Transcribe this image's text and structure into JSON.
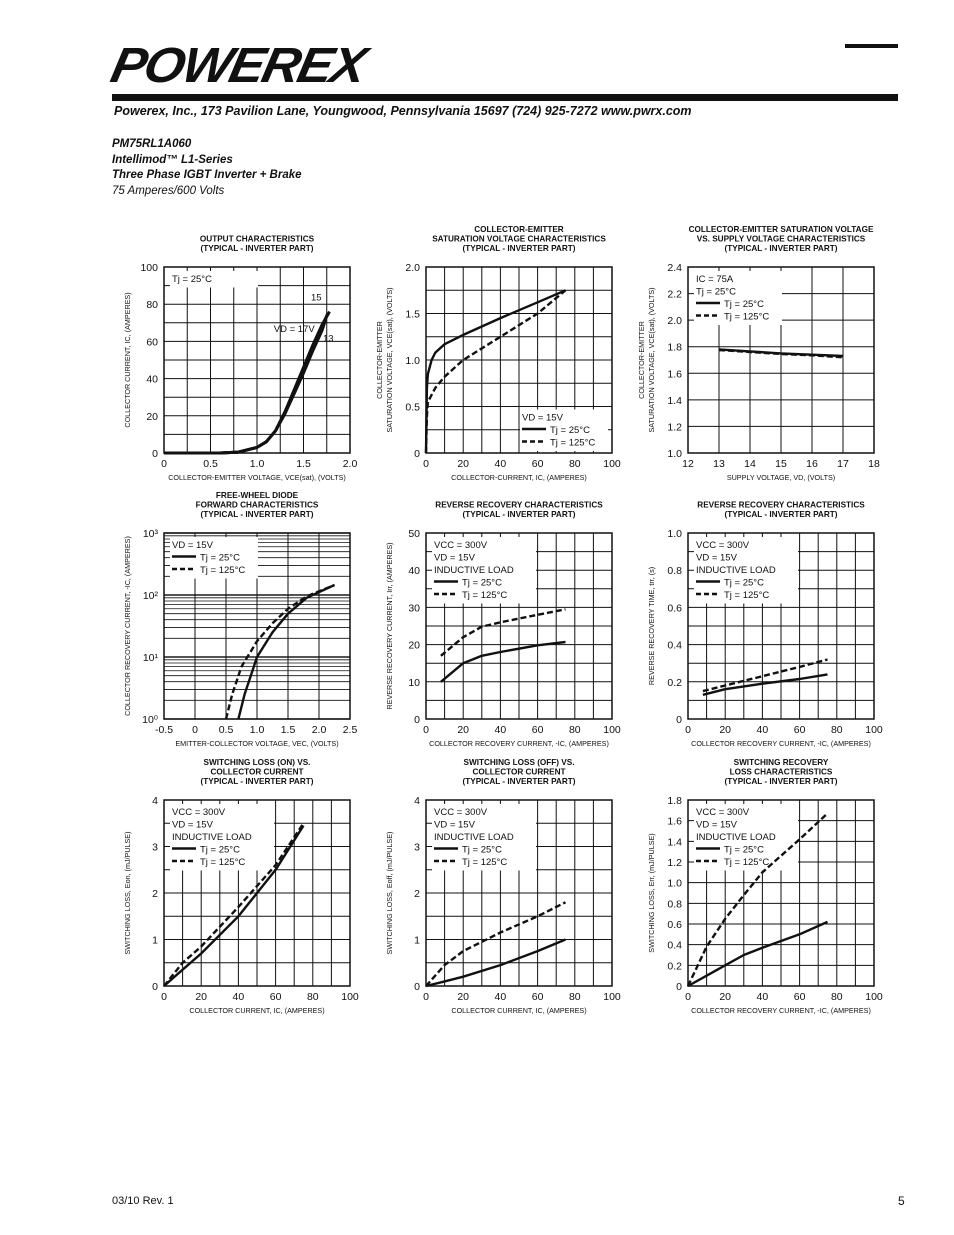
{
  "header": {
    "logo": "POWEREX",
    "address": "Powerex, Inc., 173 Pavilion Lane, Youngwood, Pennsylvania  15697   (724) 925-7272  www.pwrx.com",
    "part_number": "PM75RL1A060",
    "series": "Intellimod™ L1-Series",
    "description": "Three Phase IGBT Inverter + Brake",
    "rating": "75 Amperes/600 Volts"
  },
  "footer": {
    "revision": "03/10 Rev. 1",
    "page": "5"
  },
  "colors": {
    "ink": "#111111",
    "grid": "#111111"
  },
  "chart_data": [
    {
      "type": "line",
      "title": [
        "OUTPUT CHARACTERISTICS",
        "(TYPICAL - INVERTER PART)"
      ],
      "xlabel": "COLLECTOR-EMITTER VOLTAGE, VCE(sat), (VOLTS)",
      "ylabel": [
        "COLLECTOR CURRENT, IC, (AMPERES)"
      ],
      "xlim": [
        0,
        2.0
      ],
      "ylim": [
        0,
        100
      ],
      "xticks": [
        0,
        0.5,
        1.0,
        1.5,
        2.0
      ],
      "xtick_labels": [
        "0",
        "0.5",
        "1.0",
        "1.5",
        "2.0"
      ],
      "yticks": [
        0,
        20,
        40,
        60,
        80,
        100
      ],
      "ytick_labels": [
        "0",
        "20",
        "40",
        "60",
        "80",
        "100"
      ],
      "grid": true,
      "legend_position": "top-left",
      "legend": [
        {
          "text": "Tj = 25°C"
        }
      ],
      "annotations": [
        "15",
        "VD = 17V",
        "13"
      ],
      "series": [
        {
          "style": "solid",
          "x": [
            0,
            0.6,
            0.8,
            1.0,
            1.1,
            1.2,
            1.3,
            1.4,
            1.5,
            1.6,
            1.7,
            1.78
          ],
          "y": [
            0,
            0,
            0.5,
            3,
            6,
            12,
            22,
            34,
            46,
            58,
            69,
            76
          ]
        },
        {
          "style": "solid",
          "x": [
            0,
            0.6,
            0.8,
            1.0,
            1.1,
            1.2,
            1.3,
            1.4,
            1.5,
            1.6,
            1.7,
            1.76
          ],
          "y": [
            0,
            0,
            0.5,
            3,
            6,
            12,
            22,
            33,
            45,
            57,
            68,
            75
          ]
        },
        {
          "style": "solid",
          "x": [
            0,
            0.6,
            0.8,
            1.0,
            1.1,
            1.2,
            1.3,
            1.4,
            1.5,
            1.6,
            1.7,
            1.74
          ],
          "y": [
            0,
            0,
            0.5,
            3,
            6,
            12,
            21,
            32,
            43,
            55,
            66,
            72
          ]
        }
      ]
    },
    {
      "type": "line",
      "title": [
        "COLLECTOR-EMITTER",
        "SATURATION VOLTAGE CHARACTERISTICS",
        "(TYPICAL - INVERTER PART)"
      ],
      "xlabel": "COLLECTOR-CURRENT, IC, (AMPERES)",
      "ylabel": [
        "COLLECTOR-EMITTER",
        "SATURATION VOLTAGE, VCE(sat), (VOLTS)"
      ],
      "xlim": [
        0,
        100
      ],
      "ylim": [
        0,
        2.0
      ],
      "xticks": [
        0,
        20,
        40,
        60,
        80,
        100
      ],
      "xtick_labels": [
        "0",
        "20",
        "40",
        "60",
        "80",
        "100"
      ],
      "yticks": [
        0,
        0.5,
        1.0,
        1.5,
        2.0
      ],
      "ytick_labels": [
        "0",
        "0.5",
        "1.0",
        "1.5",
        "2.0"
      ],
      "grid": true,
      "legend_position": "bottom-right",
      "legend": [
        {
          "text": "VD = 15V"
        },
        {
          "text": "Tj = 25°C",
          "style": "solid"
        },
        {
          "text": "Tj = 125°C",
          "style": "dashed"
        }
      ],
      "series": [
        {
          "name": "Tj = 25°C",
          "style": "solid",
          "x": [
            0,
            0.5,
            1,
            3,
            5,
            10,
            20,
            40,
            60,
            75
          ],
          "y": [
            0,
            0.7,
            0.85,
            1.0,
            1.08,
            1.17,
            1.27,
            1.45,
            1.62,
            1.75
          ]
        },
        {
          "name": "Tj = 125°C",
          "style": "dashed",
          "x": [
            0,
            0.5,
            1,
            5,
            10,
            20,
            40,
            60,
            75
          ],
          "y": [
            0,
            0.4,
            0.55,
            0.7,
            0.82,
            1.0,
            1.25,
            1.5,
            1.75
          ]
        }
      ]
    },
    {
      "type": "line",
      "title": [
        "COLLECTOR-EMITTER SATURATION VOLTAGE",
        "VS. SUPPLY VOLTAGE CHARACTERISTICS",
        "(TYPICAL - INVERTER PART)"
      ],
      "xlabel": "SUPPLY VOLTAGE, VD, (VOLTS)",
      "ylabel": [
        "COLLECTOR-EMITTER",
        "SATURATION VOLTAGE, VCE(sat), (VOLTS)"
      ],
      "xlim": [
        12,
        18
      ],
      "ylim": [
        1.0,
        2.4
      ],
      "xticks": [
        12,
        13,
        14,
        15,
        16,
        17,
        18
      ],
      "xtick_labels": [
        "12",
        "13",
        "14",
        "15",
        "16",
        "17",
        "18"
      ],
      "yticks": [
        1.0,
        1.2,
        1.4,
        1.6,
        1.8,
        2.0,
        2.2,
        2.4
      ],
      "ytick_labels": [
        "1.0",
        "1.2",
        "1.4",
        "1.6",
        "1.8",
        "2.0",
        "2.2",
        "2.4"
      ],
      "grid": true,
      "legend_position": "top-left",
      "legend": [
        {
          "text": "IC = 75A"
        },
        {
          "text": "Tj = 25°C"
        },
        {
          "text": "Tj = 25°C",
          "style": "solid"
        },
        {
          "text": "Tj = 125°C",
          "style": "dashed"
        }
      ],
      "series": [
        {
          "name": "Tj = 25°C",
          "style": "solid",
          "x": [
            13,
            14,
            15,
            16,
            17
          ],
          "y": [
            1.78,
            1.765,
            1.75,
            1.74,
            1.73
          ]
        },
        {
          "name": "Tj = 125°C",
          "style": "dashed",
          "x": [
            13,
            14,
            15,
            16,
            17
          ],
          "y": [
            1.775,
            1.76,
            1.745,
            1.735,
            1.72
          ]
        }
      ]
    },
    {
      "type": "line",
      "title": [
        "FREE-WHEEL DIODE",
        "FORWARD CHARACTERISTICS",
        "(TYPICAL - INVERTER PART)"
      ],
      "xlabel": "EMITTER-COLLECTOR VOLTAGE, VEC, (VOLTS)",
      "ylabel": [
        "COLLECTOR RECOVERY CURRENT, -IC, (AMPERES)"
      ],
      "xlim": [
        -0.5,
        2.5
      ],
      "ylim": [
        1,
        1000
      ],
      "yscale": "log",
      "xticks": [
        -0.5,
        0,
        0.5,
        1.0,
        1.5,
        2.0,
        2.5
      ],
      "xtick_labels": [
        "-0.5",
        "0",
        "0.5",
        "1.0",
        "1.5",
        "2.0",
        "2.5"
      ],
      "yticks": [
        1,
        10,
        100,
        1000
      ],
      "ytick_labels": [
        "10⁰",
        "10¹",
        "10²",
        "10³"
      ],
      "grid": true,
      "legend_position": "top-left",
      "legend": [
        {
          "text": "VD = 15V"
        },
        {
          "text": "Tj = 25°C",
          "style": "solid"
        },
        {
          "text": "Tj = 125°C",
          "style": "dashed"
        }
      ],
      "series": [
        {
          "name": "Tj = 25°C",
          "style": "solid",
          "x": [
            0.7,
            0.8,
            0.9,
            1.0,
            1.25,
            1.5,
            1.8,
            2.25
          ],
          "y": [
            1,
            2.5,
            5,
            10,
            25,
            50,
            90,
            145
          ]
        },
        {
          "name": "Tj = 125°C",
          "style": "dashed",
          "x": [
            0.5,
            0.6,
            0.75,
            1.0,
            1.25,
            1.5,
            1.8,
            2.25
          ],
          "y": [
            1,
            2.5,
            7,
            18,
            35,
            60,
            95,
            145
          ]
        }
      ]
    },
    {
      "type": "line",
      "title": [
        "REVERSE RECOVERY CHARACTERISTICS",
        "(TYPICAL - INVERTER PART)"
      ],
      "xlabel": "COLLECTOR RECOVERY CURRENT, -IC, (AMPERES)",
      "ylabel": [
        "REVERSE RECOVERY CURRENT, Irr, (AMPERES)"
      ],
      "xlim": [
        0,
        100
      ],
      "ylim": [
        0,
        50
      ],
      "xticks": [
        0,
        20,
        40,
        60,
        80,
        100
      ],
      "xtick_labels": [
        "0",
        "20",
        "40",
        "60",
        "80",
        "100"
      ],
      "yticks": [
        0,
        10,
        20,
        30,
        40,
        50
      ],
      "ytick_labels": [
        "0",
        "10",
        "20",
        "30",
        "40",
        "50"
      ],
      "grid": true,
      "legend_position": "top-left",
      "legend": [
        {
          "text": "VCC = 300V"
        },
        {
          "text": "VD = 15V"
        },
        {
          "text": "INDUCTIVE LOAD"
        },
        {
          "text": "Tj = 25°C",
          "style": "solid"
        },
        {
          "text": "Tj = 125°C",
          "style": "dashed"
        }
      ],
      "series": [
        {
          "name": "Tj = 25°C",
          "style": "solid",
          "x": [
            8,
            20,
            30,
            40,
            60,
            75
          ],
          "y": [
            10,
            15,
            17,
            18,
            19.8,
            20.7
          ]
        },
        {
          "name": "Tj = 125°C",
          "style": "dashed",
          "x": [
            8,
            20,
            30,
            40,
            60,
            75
          ],
          "y": [
            17,
            22,
            24.8,
            26,
            28,
            29.5
          ]
        }
      ]
    },
    {
      "type": "line",
      "title": [
        "REVERSE RECOVERY CHARACTERISTICS",
        "(TYPICAL - INVERTER PART)"
      ],
      "xlabel": "COLLECTOR RECOVERY CURRENT, -IC, (AMPERES)",
      "ylabel": [
        "REVERSE RECOVERY TIME, trr, (s)"
      ],
      "xlim": [
        0,
        100
      ],
      "ylim": [
        0,
        1.0
      ],
      "xticks": [
        0,
        20,
        40,
        60,
        80,
        100
      ],
      "xtick_labels": [
        "0",
        "20",
        "40",
        "60",
        "80",
        "100"
      ],
      "yticks": [
        0,
        0.2,
        0.4,
        0.6,
        0.8,
        1.0
      ],
      "ytick_labels": [
        "0",
        "0.2",
        "0.4",
        "0.6",
        "0.8",
        "1.0"
      ],
      "grid": true,
      "legend_position": "top-left",
      "legend": [
        {
          "text": "VCC = 300V"
        },
        {
          "text": "VD = 15V"
        },
        {
          "text": "INDUCTIVE LOAD"
        },
        {
          "text": "Tj = 25°C",
          "style": "solid"
        },
        {
          "text": "Tj = 125°C",
          "style": "dashed"
        }
      ],
      "series": [
        {
          "name": "Tj = 25°C",
          "style": "solid",
          "x": [
            8,
            20,
            40,
            60,
            75
          ],
          "y": [
            0.13,
            0.16,
            0.19,
            0.215,
            0.24
          ]
        },
        {
          "name": "Tj = 125°C",
          "style": "dashed",
          "x": [
            8,
            20,
            40,
            60,
            75
          ],
          "y": [
            0.15,
            0.18,
            0.23,
            0.28,
            0.32
          ]
        }
      ]
    },
    {
      "type": "line",
      "title": [
        "SWITCHING LOSS (ON) VS.",
        "COLLECTOR CURRENT",
        "(TYPICAL - INVERTER PART)"
      ],
      "xlabel": "COLLECTOR CURRENT, IC, (AMPERES)",
      "ylabel": [
        "SWITCHING LOSS, Eon, (mJ/PULSE)"
      ],
      "xlim": [
        0,
        100
      ],
      "ylim": [
        0,
        4
      ],
      "xticks": [
        0,
        20,
        40,
        60,
        80,
        100
      ],
      "xtick_labels": [
        "0",
        "20",
        "40",
        "60",
        "80",
        "100"
      ],
      "yticks": [
        0,
        1,
        2,
        3,
        4
      ],
      "ytick_labels": [
        "0",
        "1",
        "2",
        "3",
        "4"
      ],
      "grid": true,
      "legend_position": "top-left",
      "legend": [
        {
          "text": "VCC = 300V"
        },
        {
          "text": "VD = 15V"
        },
        {
          "text": "INDUCTIVE LOAD"
        },
        {
          "text": "Tj = 25°C",
          "style": "solid"
        },
        {
          "text": "Tj = 125°C",
          "style": "dashed"
        }
      ],
      "series": [
        {
          "name": "Tj = 25°C",
          "style": "solid",
          "x": [
            0,
            10,
            20,
            40,
            60,
            75
          ],
          "y": [
            0,
            0.35,
            0.7,
            1.5,
            2.5,
            3.45
          ]
        },
        {
          "name": "Tj = 125°C",
          "style": "dashed",
          "x": [
            0,
            10,
            20,
            40,
            60,
            75
          ],
          "y": [
            0,
            0.5,
            0.85,
            1.7,
            2.6,
            3.5
          ]
        }
      ]
    },
    {
      "type": "line",
      "title": [
        "SWITCHING LOSS (OFF) VS.",
        "COLLECTOR CURRENT",
        "(TYPICAL - INVERTER PART)"
      ],
      "xlabel": "COLLECTOR CURRENT, IC, (AMPERES)",
      "ylabel": [
        "SWITCHING LOSS, Eoff, (mJ/PULSE)"
      ],
      "xlim": [
        0,
        100
      ],
      "ylim": [
        0,
        4
      ],
      "xticks": [
        0,
        20,
        40,
        60,
        80,
        100
      ],
      "xtick_labels": [
        "0",
        "20",
        "40",
        "60",
        "80",
        "100"
      ],
      "yticks": [
        0,
        1,
        2,
        3,
        4
      ],
      "ytick_labels": [
        "0",
        "1",
        "2",
        "3",
        "4"
      ],
      "grid": true,
      "legend_position": "top-left",
      "legend": [
        {
          "text": "VCC = 300V"
        },
        {
          "text": "VD = 15V"
        },
        {
          "text": "INDUCTIVE LOAD"
        },
        {
          "text": "Tj = 25°C",
          "style": "solid"
        },
        {
          "text": "Tj = 125°C",
          "style": "dashed"
        }
      ],
      "series": [
        {
          "name": "Tj = 25°C",
          "style": "solid",
          "x": [
            0,
            10,
            20,
            40,
            60,
            75
          ],
          "y": [
            0,
            0.1,
            0.2,
            0.45,
            0.75,
            1.0
          ]
        },
        {
          "name": "Tj = 125°C",
          "style": "dashed",
          "x": [
            0,
            10,
            20,
            40,
            60,
            75
          ],
          "y": [
            0,
            0.45,
            0.75,
            1.15,
            1.5,
            1.8
          ]
        }
      ]
    },
    {
      "type": "line",
      "title": [
        "SWITCHING RECOVERY",
        "LOSS CHARACTERISTICS",
        "(TYPICAL - INVERTER PART)"
      ],
      "xlabel": "COLLECTOR RECOVERY CURRENT, -IC, (AMPERES)",
      "ylabel": [
        "SWITCHING LOSS, Err, (mJ/PULSE)"
      ],
      "xlim": [
        0,
        100
      ],
      "ylim": [
        0,
        1.8
      ],
      "xticks": [
        0,
        20,
        40,
        60,
        80,
        100
      ],
      "xtick_labels": [
        "0",
        "20",
        "40",
        "60",
        "80",
        "100"
      ],
      "yticks": [
        0,
        0.2,
        0.4,
        0.6,
        0.8,
        1.0,
        1.2,
        1.4,
        1.6,
        1.8
      ],
      "ytick_labels": [
        "0",
        "0.2",
        "0.4",
        "0.6",
        "0.8",
        "1.0",
        "1.2",
        "1.4",
        "1.6",
        "1.8"
      ],
      "grid": true,
      "legend_position": "top-left",
      "legend": [
        {
          "text": "VCC = 300V"
        },
        {
          "text": "VD = 15V"
        },
        {
          "text": "INDUCTIVE LOAD"
        },
        {
          "text": "Tj = 25°C",
          "style": "solid"
        },
        {
          "text": "Tj = 125°C",
          "style": "dashed"
        }
      ],
      "series": [
        {
          "name": "Tj = 25°C",
          "style": "solid",
          "x": [
            0,
            10,
            20,
            30,
            40,
            60,
            75
          ],
          "y": [
            0,
            0.1,
            0.2,
            0.3,
            0.37,
            0.5,
            0.62
          ]
        },
        {
          "name": "Tj = 125°C",
          "style": "dashed",
          "x": [
            0,
            10,
            20,
            30,
            40,
            60,
            75
          ],
          "y": [
            0,
            0.38,
            0.65,
            0.88,
            1.1,
            1.42,
            1.67
          ]
        }
      ]
    }
  ]
}
